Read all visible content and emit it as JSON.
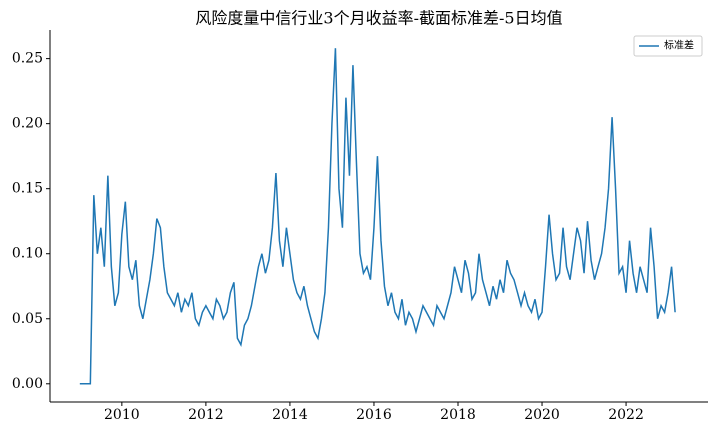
{
  "chart_data": {
    "type": "line",
    "title": "风险度量中信行业3个月收益率-截面标准差-5日均值",
    "x": [
      2009,
      2009.083,
      2009.167,
      2009.25,
      2009.333,
      2009.417,
      2009.5,
      2009.583,
      2009.667,
      2009.75,
      2009.833,
      2009.917,
      2010,
      2010.083,
      2010.167,
      2010.25,
      2010.333,
      2010.417,
      2010.5,
      2010.583,
      2010.667,
      2010.75,
      2010.833,
      2010.917,
      2011,
      2011.083,
      2011.167,
      2011.25,
      2011.333,
      2011.417,
      2011.5,
      2011.583,
      2011.667,
      2011.75,
      2011.833,
      2011.917,
      2012,
      2012.083,
      2012.167,
      2012.25,
      2012.333,
      2012.417,
      2012.5,
      2012.583,
      2012.667,
      2012.75,
      2012.833,
      2012.917,
      2013,
      2013.083,
      2013.167,
      2013.25,
      2013.333,
      2013.417,
      2013.5,
      2013.583,
      2013.667,
      2013.75,
      2013.833,
      2013.917,
      2014,
      2014.083,
      2014.167,
      2014.25,
      2014.333,
      2014.417,
      2014.5,
      2014.583,
      2014.667,
      2014.75,
      2014.833,
      2014.917,
      2015,
      2015.083,
      2015.167,
      2015.25,
      2015.333,
      2015.417,
      2015.5,
      2015.583,
      2015.667,
      2015.75,
      2015.833,
      2015.917,
      2016,
      2016.083,
      2016.167,
      2016.25,
      2016.333,
      2016.417,
      2016.5,
      2016.583,
      2016.667,
      2016.75,
      2016.833,
      2016.917,
      2017,
      2017.083,
      2017.167,
      2017.25,
      2017.333,
      2017.417,
      2017.5,
      2017.583,
      2017.667,
      2017.75,
      2017.833,
      2017.917,
      2018,
      2018.083,
      2018.167,
      2018.25,
      2018.333,
      2018.417,
      2018.5,
      2018.583,
      2018.667,
      2018.75,
      2018.833,
      2018.917,
      2019,
      2019.083,
      2019.167,
      2019.25,
      2019.333,
      2019.417,
      2019.5,
      2019.583,
      2019.667,
      2019.75,
      2019.833,
      2019.917,
      2020,
      2020.083,
      2020.167,
      2020.25,
      2020.333,
      2020.417,
      2020.5,
      2020.583,
      2020.667,
      2020.75,
      2020.833,
      2020.917,
      2021,
      2021.083,
      2021.167,
      2021.25,
      2021.333,
      2021.417,
      2021.5,
      2021.583,
      2021.667,
      2021.75,
      2021.833,
      2021.917,
      2022,
      2022.083,
      2022.167,
      2022.25,
      2022.333,
      2022.417,
      2022.5,
      2022.583,
      2022.667,
      2022.75,
      2022.833,
      2022.917,
      2023,
      2023.083,
      2023.167
    ],
    "series": [
      {
        "name": "标准差",
        "color": "#1f77b4",
        "values": [
          0,
          0,
          0,
          0,
          0.145,
          0.1,
          0.12,
          0.09,
          0.16,
          0.09,
          0.06,
          0.07,
          0.115,
          0.14,
          0.09,
          0.08,
          0.095,
          0.06,
          0.05,
          0.065,
          0.08,
          0.1,
          0.127,
          0.12,
          0.09,
          0.07,
          0.065,
          0.06,
          0.07,
          0.055,
          0.065,
          0.06,
          0.07,
          0.05,
          0.045,
          0.055,
          0.06,
          0.055,
          0.05,
          0.065,
          0.06,
          0.05,
          0.055,
          0.07,
          0.078,
          0.035,
          0.03,
          0.045,
          0.05,
          0.06,
          0.075,
          0.09,
          0.1,
          0.085,
          0.095,
          0.12,
          0.162,
          0.11,
          0.09,
          0.12,
          0.1,
          0.08,
          0.07,
          0.065,
          0.075,
          0.06,
          0.05,
          0.04,
          0.035,
          0.05,
          0.07,
          0.12,
          0.2,
          0.258,
          0.15,
          0.12,
          0.22,
          0.16,
          0.245,
          0.17,
          0.1,
          0.085,
          0.09,
          0.08,
          0.12,
          0.175,
          0.11,
          0.075,
          0.06,
          0.07,
          0.055,
          0.05,
          0.065,
          0.045,
          0.055,
          0.05,
          0.04,
          0.05,
          0.06,
          0.055,
          0.05,
          0.045,
          0.06,
          0.055,
          0.05,
          0.06,
          0.07,
          0.09,
          0.08,
          0.07,
          0.095,
          0.085,
          0.065,
          0.07,
          0.1,
          0.08,
          0.07,
          0.06,
          0.075,
          0.065,
          0.08,
          0.07,
          0.095,
          0.085,
          0.08,
          0.07,
          0.06,
          0.07,
          0.06,
          0.055,
          0.065,
          0.05,
          0.055,
          0.09,
          0.13,
          0.1,
          0.08,
          0.085,
          0.12,
          0.09,
          0.08,
          0.1,
          0.12,
          0.11,
          0.085,
          0.125,
          0.095,
          0.08,
          0.09,
          0.1,
          0.12,
          0.15,
          0.205,
          0.15,
          0.085,
          0.09,
          0.07,
          0.11,
          0.085,
          0.07,
          0.09,
          0.08,
          0.07,
          0.12,
          0.09,
          0.05,
          0.06,
          0.055,
          0.07,
          0.09,
          0.055
        ]
      }
    ],
    "xlim": [
      2008.29,
      2023.95
    ],
    "xticks": [
      2010,
      2012,
      2014,
      2016,
      2018,
      2020,
      2022
    ],
    "ylim": [
      -0.014,
      0.272
    ],
    "yticks": [
      {
        "value": 0,
        "label": "0.00"
      },
      {
        "value": 0.05,
        "label": "0.05"
      },
      {
        "value": 0.1,
        "label": "0.10"
      },
      {
        "value": 0.15,
        "label": "0.15"
      },
      {
        "value": 0.2,
        "label": "0.20"
      },
      {
        "value": 0.25,
        "label": "0.25"
      }
    ],
    "legend": "upper right"
  }
}
